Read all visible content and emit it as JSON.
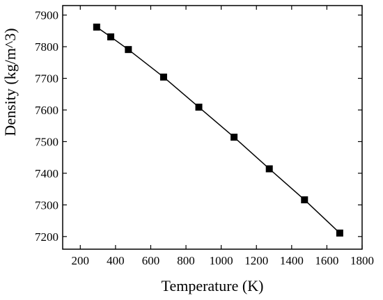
{
  "chart_data": {
    "type": "line",
    "xlabel": "Temperature (K)",
    "ylabel": "Density (kg/m^3)",
    "xlim": [
      100,
      1800
    ],
    "ylim": [
      7160,
      7930
    ],
    "x_ticks": [
      200,
      400,
      600,
      800,
      1000,
      1200,
      1400,
      1600,
      1800
    ],
    "y_ticks": [
      7200,
      7300,
      7400,
      7500,
      7600,
      7700,
      7800,
      7900
    ],
    "grid": false,
    "marker": "square",
    "color": "#000000",
    "series": [
      {
        "x": [
          293,
          373,
          473,
          673,
          873,
          1073,
          1273,
          1473,
          1673
        ],
        "y": [
          7862,
          7831,
          7791,
          7704,
          7609,
          7514,
          7414,
          7316,
          7211
        ]
      }
    ]
  }
}
